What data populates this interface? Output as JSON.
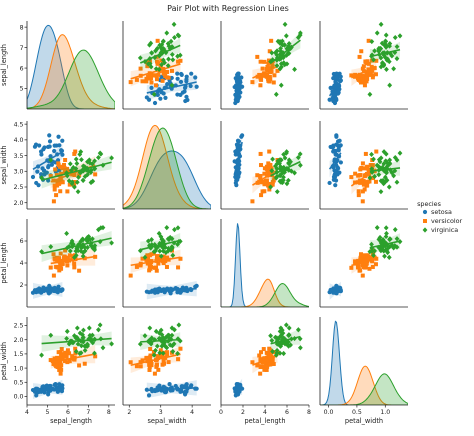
{
  "chart_data": {
    "type": "pairplot",
    "title": "Pair Plot with Regression Lines",
    "variables": [
      "sepal_length",
      "sepal_width",
      "petal_length",
      "petal_width"
    ],
    "hue": "species",
    "legend": {
      "title": "species",
      "placement": "right-center",
      "entries": [
        {
          "name": "setosa",
          "color": "#1f77b4",
          "marker": "circle"
        },
        {
          "name": "versicolor",
          "color": "#ff7f0e",
          "marker": "square"
        },
        {
          "name": "virginica",
          "color": "#2ca02c",
          "marker": "diamond"
        }
      ]
    },
    "axis_ranges": {
      "sepal_length": [
        4.0,
        8.3
      ],
      "sepal_width": [
        1.8,
        4.6
      ],
      "petal_length": [
        0.0,
        8.0
      ],
      "petal_width": [
        -0.3,
        2.8
      ]
    },
    "axis_ticks": {
      "sepal_length": [
        "4",
        "5",
        "6",
        "7",
        "8"
      ],
      "sepal_width_row": [
        "2.0",
        "2.5",
        "3.0",
        "3.5",
        "4.0",
        "4.5"
      ],
      "sepal_width_col": [
        "2",
        "3",
        "4"
      ],
      "petal_length": [
        "0",
        "2",
        "4",
        "6",
        "8"
      ],
      "petal_width": [
        "0.0",
        "0.5",
        "1.0",
        "1.5",
        "2.0",
        "2.5"
      ],
      "sepal_length_row": [
        "5",
        "6",
        "7",
        "8"
      ],
      "petal_length_row": [
        "2",
        "4",
        "6"
      ]
    },
    "species_means": {
      "setosa": {
        "sepal_length": 5.0,
        "sepal_width": 3.4,
        "petal_length": 1.5,
        "petal_width": 0.25
      },
      "versicolor": {
        "sepal_length": 5.9,
        "sepal_width": 2.8,
        "petal_length": 4.3,
        "petal_width": 1.3
      },
      "virginica": {
        "sepal_length": 6.6,
        "sepal_width": 3.0,
        "petal_length": 5.6,
        "petal_width": 2.0
      }
    },
    "species_sd": {
      "setosa": {
        "sepal_length": 0.35,
        "sepal_width": 0.38,
        "petal_length": 0.17,
        "petal_width": 0.1
      },
      "versicolor": {
        "sepal_length": 0.5,
        "sepal_width": 0.31,
        "petal_length": 0.47,
        "petal_width": 0.2
      },
      "virginica": {
        "sepal_length": 0.6,
        "sepal_width": 0.32,
        "petal_length": 0.55,
        "petal_width": 0.27
      }
    },
    "points_per_species": 50,
    "regression": "per-species linear fit with confidence band",
    "diagonal": "kernel density per species (filled)"
  }
}
